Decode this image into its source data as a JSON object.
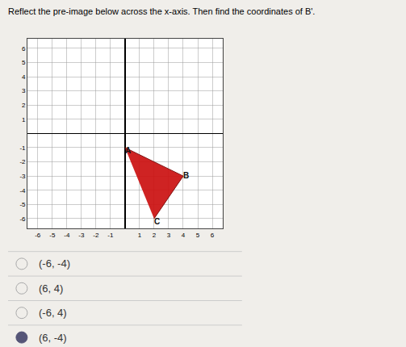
{
  "chart_data": {
    "type": "polygon",
    "title": "Reflect the pre-image below across the x-axis. Then find the coordinates of B'.",
    "x": [
      0,
      4,
      2
    ],
    "values": [
      -1,
      -3,
      -6
    ],
    "color": "#cc1111",
    "annotations": [
      "A",
      "B",
      "C"
    ],
    "xlim": [
      -6.7,
      6.7
    ],
    "ylim": [
      -6.7,
      6.7
    ],
    "xticks": [
      -6,
      -5,
      -4,
      -3,
      -2,
      -1,
      1,
      2,
      3,
      4,
      5,
      6
    ],
    "yticks": [
      -6,
      -5,
      -4,
      -3,
      -2,
      -1,
      1,
      2,
      3,
      4,
      5,
      6
    ],
    "grid": true,
    "choices": [
      {
        "text": "(-6, -4)",
        "selected": false
      },
      {
        "text": "(6, 4)",
        "selected": false
      },
      {
        "text": "(-6, 4)",
        "selected": false
      },
      {
        "text": "(6, -4)",
        "selected": true
      }
    ]
  }
}
